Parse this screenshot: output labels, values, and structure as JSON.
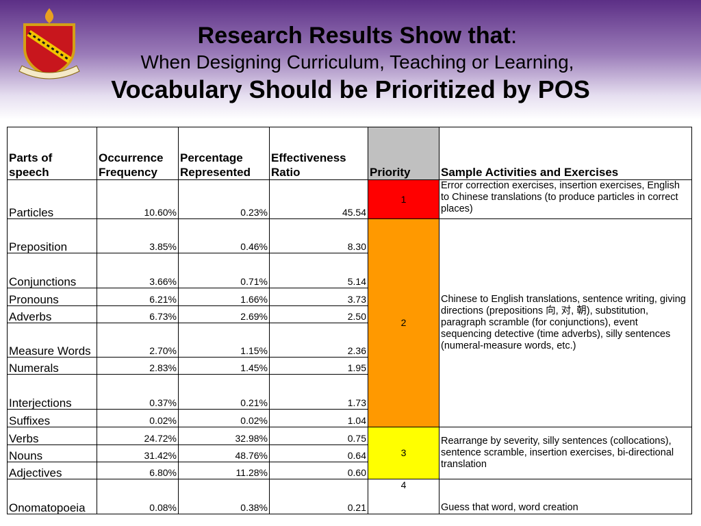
{
  "header": {
    "title": "Research Results Show that",
    "title_suffix": ":",
    "subtitle": "When Designing Curriculum, Teaching or Learning,",
    "headline": "Vocabulary Should be Prioritized by POS"
  },
  "table": {
    "columns": [
      "Parts of speech",
      "Occurrence Frequency",
      "Percentage Represented",
      "Effectiveness Ratio",
      "Priority",
      "Sample Activities and Exercises"
    ],
    "groups": [
      {
        "priority": "1",
        "color": "#ff0000",
        "activities": "Error correction exercises, insertion exercises, English to Chinese translations (to produce particles in correct places)",
        "rows": [
          [
            "Particles",
            "10.60%",
            "0.23%",
            "45.54"
          ]
        ]
      },
      {
        "priority": "2",
        "color": "#ff9900",
        "activities": "Chinese to English translations, sentence writing, giving directions (prepositions 向, 对, 朝), substitution, paragraph scramble (for conjunctions), event sequencing detective (time adverbs), silly sentences (numeral-measure words, etc.)",
        "rows": [
          [
            "Preposition",
            "3.85%",
            "0.46%",
            "8.30"
          ],
          [
            "Conjunctions",
            "3.66%",
            "0.71%",
            "5.14"
          ],
          [
            "Pronouns",
            "6.21%",
            "1.66%",
            "3.73"
          ],
          [
            "Adverbs",
            "6.73%",
            "2.69%",
            "2.50"
          ],
          [
            "Measure Words",
            "2.70%",
            "1.15%",
            "2.36"
          ],
          [
            "Numerals",
            "2.83%",
            "1.45%",
            "1.95"
          ],
          [
            "Interjections",
            "0.37%",
            "0.21%",
            "1.73"
          ],
          [
            "Suffixes",
            "0.02%",
            "0.02%",
            "1.04"
          ]
        ]
      },
      {
        "priority": "3",
        "color": "#ffff00",
        "activities": "Rearrange by severity, silly sentences (collocations), sentence scramble, insertion exercises, bi-directional translation",
        "rows": [
          [
            "Verbs",
            "24.72%",
            "32.98%",
            "0.75"
          ],
          [
            "Nouns",
            "31.42%",
            "48.76%",
            "0.64"
          ],
          [
            "Adjectives",
            "6.80%",
            "11.28%",
            "0.60"
          ]
        ]
      },
      {
        "priority": "4",
        "color": "#ffffff",
        "activities": "Guess that word, word creation",
        "rows": [
          [
            "Onomatopoeia",
            "0.08%",
            "0.38%",
            "0.21"
          ]
        ]
      }
    ]
  }
}
